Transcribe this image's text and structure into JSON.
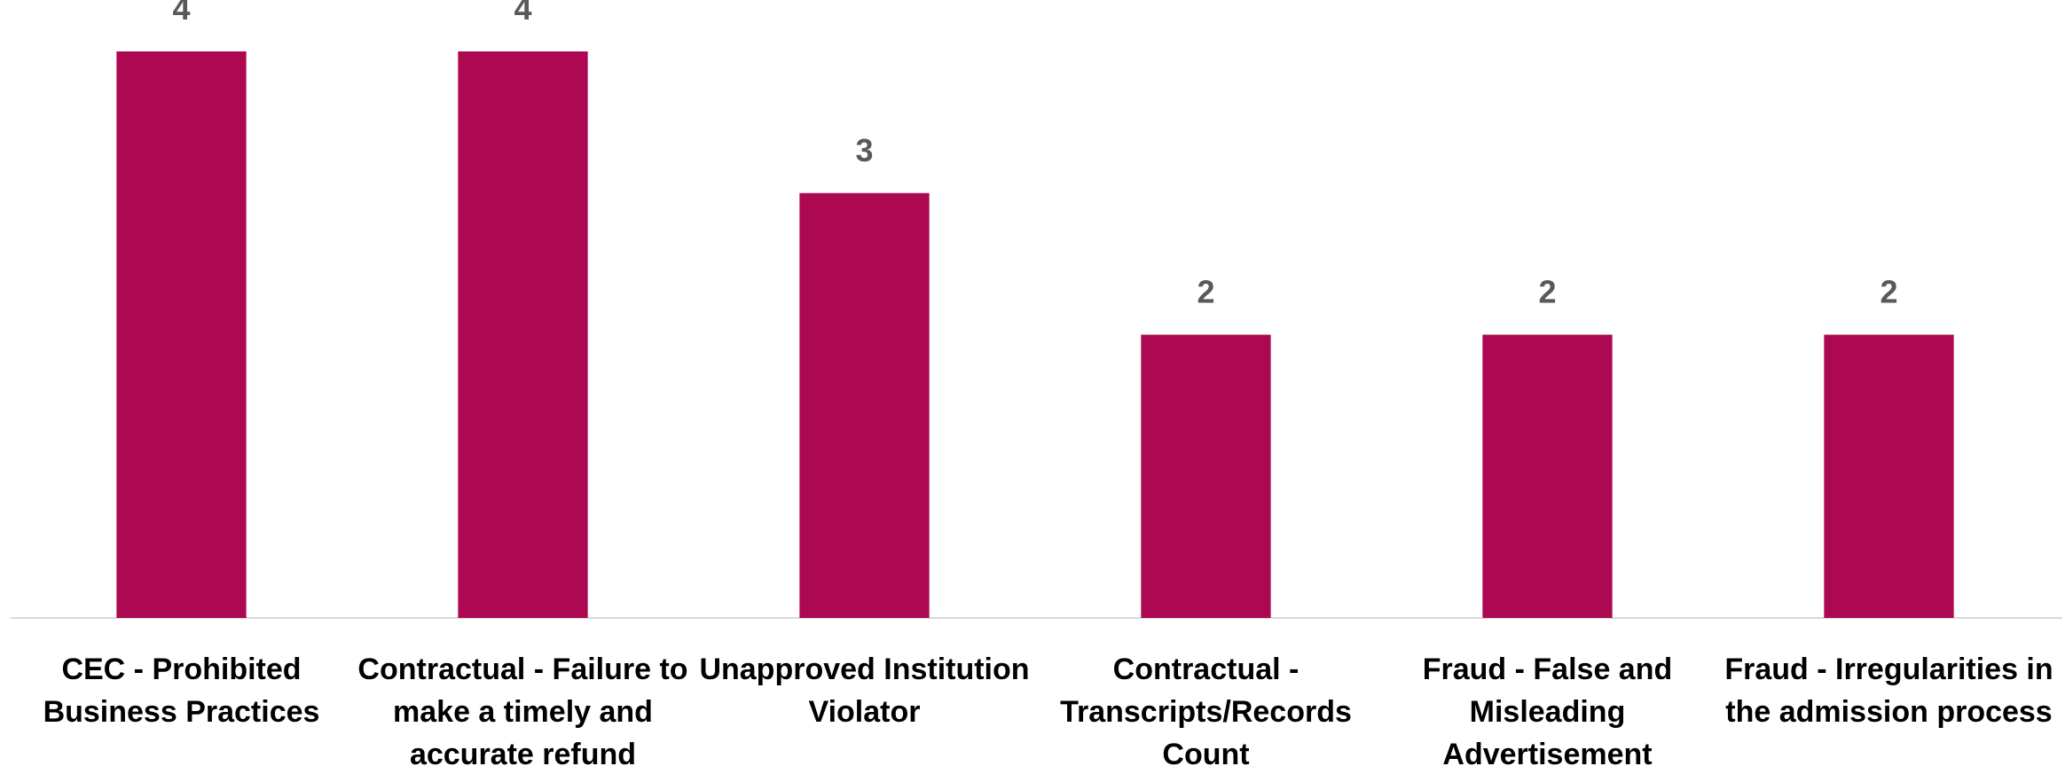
{
  "chart_data": {
    "type": "bar",
    "categories": [
      "CEC - Prohibited Business Practices",
      "Contractual - Failure to make a timely and accurate refund",
      "Unapproved Institution Violator",
      "Contractual - Transcripts/Records Count",
      "Fraud - False and Misleading Advertisement",
      "Fraud - Irregularities in the admission process"
    ],
    "values": [
      4,
      4,
      3,
      2,
      2,
      2
    ],
    "color": "#ad0952",
    "ylim": [
      0,
      4
    ]
  }
}
